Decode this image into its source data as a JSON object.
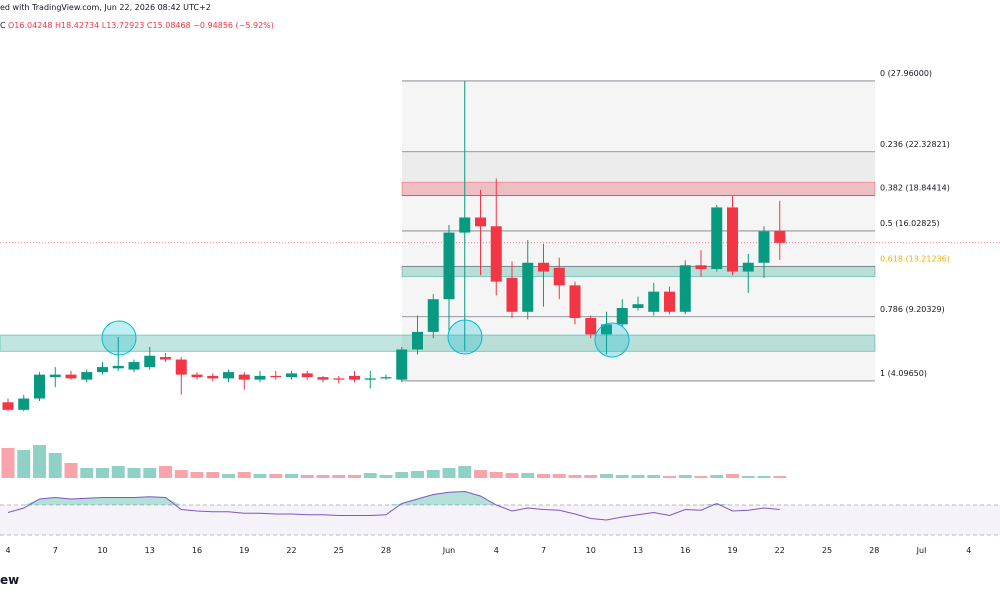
{
  "chart_data": {
    "type": "candlestick",
    "header": {
      "credit": "ed with TradingView.com, Jun 22, 2026 08:42 UTC+2",
      "prefix": "C",
      "ohlc": "O16.04248 H18.42734 L13.72923 C15.08468 −0.94856 (−5.92%)"
    },
    "footer": "ew",
    "x": [
      0,
      1,
      2,
      3,
      4,
      5,
      6,
      7,
      8,
      9,
      10,
      11,
      12,
      13,
      14,
      15,
      16,
      17,
      18,
      19,
      20,
      21,
      22,
      23,
      24,
      25,
      26,
      27,
      28,
      29,
      30,
      31,
      32,
      33,
      34,
      35,
      36,
      37,
      38,
      39,
      40,
      41,
      42,
      43,
      44,
      45,
      46,
      47,
      48,
      49
    ],
    "open": [
      2.4,
      1.8,
      2.7,
      4.4,
      4.6,
      4.2,
      4.8,
      5.1,
      5.0,
      5.2,
      6.0,
      5.8,
      4.6,
      4.5,
      4.3,
      4.6,
      4.2,
      4.5,
      4.4,
      4.7,
      4.4,
      4.3,
      4.5,
      4.2,
      4.3,
      4.2,
      6.6,
      8.0,
      10.6,
      15.9,
      17.1,
      16.4,
      12.3,
      9.6,
      13.5,
      13.1,
      11.7,
      9.1,
      7.8,
      8.6,
      9.9,
      9.6,
      11.2,
      9.6,
      13.3,
      13.0,
      17.9,
      12.8,
      13.5,
      16.04248
    ],
    "high": [
      2.7,
      3.0,
      4.8,
      5.2,
      4.9,
      5.0,
      5.6,
      7.6,
      5.8,
      6.8,
      6.3,
      6.0,
      4.8,
      4.7,
      5.0,
      4.8,
      4.9,
      4.9,
      4.9,
      4.9,
      4.5,
      4.5,
      4.9,
      4.9,
      4.6,
      6.8,
      9.3,
      11.0,
      16.5,
      27.96,
      19.3,
      20.2,
      13.6,
      15.3,
      15.0,
      13.9,
      12.0,
      9.3,
      9.6,
      10.6,
      10.8,
      11.9,
      11.6,
      13.7,
      14.5,
      18.1,
      18.8,
      14.2,
      16.4,
      18.42734
    ],
    "low": [
      1.7,
      1.7,
      2.5,
      3.6,
      4.2,
      4.0,
      4.6,
      4.9,
      4.8,
      5.0,
      5.6,
      3.0,
      4.2,
      4.1,
      4.0,
      3.4,
      4.0,
      4.2,
      4.2,
      4.2,
      4.0,
      3.9,
      4.0,
      3.5,
      4.2,
      4.0,
      6.2,
      7.5,
      8.0,
      6.5,
      12.5,
      10.9,
      9.1,
      9.0,
      10.0,
      10.6,
      8.6,
      7.5,
      6.2,
      8.4,
      9.7,
      9.3,
      9.4,
      9.4,
      12.4,
      12.8,
      12.5,
      11.1,
      12.3,
      13.72923
    ],
    "close": [
      1.8,
      2.7,
      4.6,
      4.6,
      4.3,
      4.8,
      5.2,
      5.3,
      5.6,
      6.1,
      5.8,
      4.6,
      4.4,
      4.3,
      4.8,
      4.2,
      4.5,
      4.4,
      4.7,
      4.4,
      4.2,
      4.2,
      4.2,
      4.3,
      4.4,
      6.6,
      8.0,
      10.6,
      15.9,
      17.1,
      16.4,
      12.0,
      9.6,
      13.5,
      12.8,
      11.7,
      9.1,
      7.8,
      8.6,
      9.9,
      10.2,
      11.2,
      9.6,
      13.3,
      13.0,
      17.9,
      12.8,
      13.5,
      16.0,
      15.08468
    ],
    "volume": [
      30,
      28,
      33,
      25,
      15,
      10,
      10,
      12,
      10,
      10,
      12,
      8,
      6,
      6,
      4,
      6,
      4,
      4,
      4,
      3,
      3,
      3,
      3,
      5,
      3,
      6,
      7,
      8,
      10,
      12,
      8,
      6,
      5,
      5,
      4,
      4,
      3,
      3,
      4,
      3,
      3,
      3,
      2,
      3,
      2,
      3,
      4,
      2,
      2,
      2
    ],
    "rsi": [
      60,
      66,
      78,
      80,
      78,
      79,
      80,
      80,
      80,
      81,
      80,
      64,
      62,
      61,
      61,
      59,
      59,
      58,
      58,
      57,
      57,
      56,
      56,
      56,
      57,
      72,
      78,
      84,
      87,
      88,
      82,
      70,
      62,
      66,
      64,
      63,
      58,
      52,
      50,
      54,
      57,
      60,
      56,
      64,
      63,
      72,
      62,
      63,
      66,
      64
    ],
    "ylim": [
      -0.6,
      34.4
    ],
    "volume_ylim": [
      0,
      60
    ],
    "rsi_ylim": [
      0,
      100
    ],
    "rsi_band": [
      30,
      70
    ],
    "colors": {
      "up": "#089981",
      "down": "#f23645",
      "rsi": "#7e57c2"
    },
    "fib_levels": [
      {
        "price": 27.96,
        "label": "0 (27.96000)"
      },
      {
        "price": 22.32821,
        "label": "0.236 (22.32821)"
      },
      {
        "price": 18.84414,
        "label": "0.382 (18.84414)"
      },
      {
        "price": 16.02825,
        "label": "0.5 (16.02825)"
      },
      {
        "price": 13.21236,
        "label": "0.618 (13.21236)"
      },
      {
        "price": 9.20329,
        "label": "0.786 (9.20329)"
      },
      {
        "price": 4.0965,
        "label": "1 (4.09650)"
      }
    ],
    "zones": [
      {
        "from": 18.84414,
        "to": 19.9,
        "color": "#f23645"
      },
      {
        "from": 12.4,
        "to": 13.21236,
        "color": "#089981"
      },
      {
        "from": 6.45,
        "to": 7.75,
        "color": "#089981"
      }
    ],
    "xticks": [
      {
        "value": 0,
        "label": "4"
      },
      {
        "value": 3,
        "label": "7"
      },
      {
        "value": 6,
        "label": "10"
      },
      {
        "value": 9,
        "label": "13"
      },
      {
        "value": 12,
        "label": "16"
      },
      {
        "value": 15,
        "label": "19"
      },
      {
        "value": 18,
        "label": "22"
      },
      {
        "value": 21,
        "label": "25"
      },
      {
        "value": 24,
        "label": "28"
      },
      {
        "value": 28,
        "label": "Jun"
      },
      {
        "value": 31,
        "label": "4"
      },
      {
        "value": 34,
        "label": "7"
      },
      {
        "value": 37,
        "label": "10"
      },
      {
        "value": 40,
        "label": "13"
      },
      {
        "value": 43,
        "label": "16"
      },
      {
        "value": 46,
        "label": "19"
      },
      {
        "value": 49,
        "label": "22"
      },
      {
        "value": 52,
        "label": "25"
      },
      {
        "value": 55,
        "label": "28"
      },
      {
        "value": 58,
        "label": "Jul"
      },
      {
        "value": 61,
        "label": "4"
      }
    ]
  }
}
